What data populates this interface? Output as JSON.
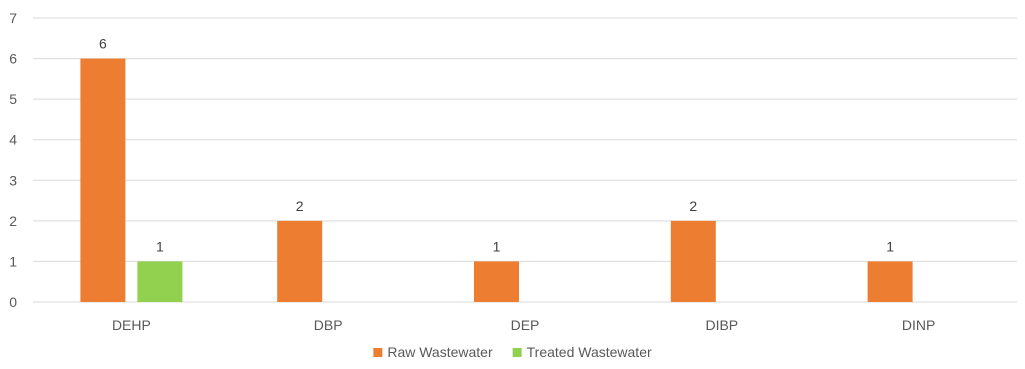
{
  "chart_data": {
    "type": "bar",
    "categories": [
      "DEHP",
      "DBP",
      "DEP",
      "DIBP",
      "DINP"
    ],
    "series": [
      {
        "name": "Raw Wastewater",
        "color": "#ed7d31",
        "values": [
          6,
          2,
          1,
          2,
          1
        ]
      },
      {
        "name": "Treated Wastewater",
        "color": "#92d050",
        "values": [
          1,
          null,
          null,
          null,
          null
        ]
      }
    ],
    "ylim": [
      0,
      7
    ],
    "yticks": [
      "0",
      "1",
      "2",
      "3",
      "4",
      "5",
      "6",
      "7"
    ],
    "grid": true,
    "legend": "bottom"
  }
}
